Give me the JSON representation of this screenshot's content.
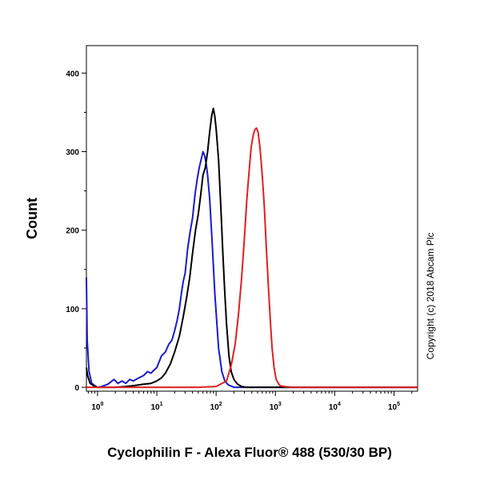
{
  "chart_data": {
    "type": "line",
    "xlabel": "Cyclophilin F - Alexa Fluor® 488 (530/30 BP)",
    "ylabel": "Count",
    "x_scale": "log",
    "xlim": [
      0.65,
      250000
    ],
    "ylim": [
      -5,
      435
    ],
    "x_ticks": [
      {
        "value": 1,
        "base": "10",
        "exp": "0"
      },
      {
        "value": 10,
        "base": "10",
        "exp": "1"
      },
      {
        "value": 100,
        "base": "10",
        "exp": "2"
      },
      {
        "value": 1000,
        "base": "10",
        "exp": "3"
      },
      {
        "value": 10000,
        "base": "10",
        "exp": "4"
      },
      {
        "value": 100000,
        "base": "10",
        "exp": "5"
      }
    ],
    "y_ticks": [
      {
        "value": 0,
        "label": "0"
      },
      {
        "value": 100,
        "label": "100"
      },
      {
        "value": 200,
        "label": "200"
      },
      {
        "value": 300,
        "label": "300"
      },
      {
        "value": 400,
        "label": "400"
      }
    ],
    "grid": false,
    "legend": "none",
    "series": [
      {
        "color": "#1a1acc",
        "x": [
          0.65,
          0.67,
          0.72,
          0.8,
          0.9,
          1.0,
          1.2,
          1.5,
          1.9,
          2.2,
          2.6,
          3.0,
          3.5,
          4.0,
          5.0,
          6.0,
          7.0,
          8.0,
          9.0,
          10.0,
          12.0,
          14.0,
          16.0,
          18.0,
          20.0,
          22.0,
          24.0,
          26.0,
          28.0,
          30.0,
          33.0,
          36.0,
          40.0,
          44.0,
          48.0,
          52.0,
          56.0,
          60.0,
          64.0,
          68.0,
          72.0,
          78.0,
          85.0,
          95.0,
          110.0,
          125.0,
          140.0,
          160.0,
          200.0,
          300.0,
          1000.0,
          250000.0
        ],
        "y": [
          140,
          60,
          20,
          5,
          2,
          0,
          1,
          4,
          10,
          5,
          8,
          5,
          10,
          8,
          12,
          15,
          20,
          18,
          22,
          25,
          40,
          45,
          55,
          60,
          72,
          85,
          100,
          120,
          135,
          145,
          175,
          195,
          215,
          245,
          265,
          280,
          290,
          300,
          295,
          285,
          270,
          240,
          190,
          120,
          50,
          20,
          8,
          3,
          0,
          0,
          0,
          0
        ]
      },
      {
        "color": "#000000",
        "x": [
          0.65,
          0.68,
          0.75,
          0.9,
          1.0,
          2.0,
          3.0,
          4.0,
          5.0,
          6.0,
          8.0,
          10.0,
          12.0,
          14.0,
          17.0,
          20.0,
          24.0,
          28.0,
          32.0,
          36.0,
          40.0,
          45.0,
          50.0,
          55.0,
          60.0,
          66.0,
          72.0,
          78.0,
          84.0,
          90.0,
          95.0,
          100.0,
          110.0,
          120.0,
          130.0,
          140.0,
          150.0,
          165.0,
          180.0,
          200.0,
          230.0,
          270.0,
          320.0,
          1000.0,
          250000.0
        ],
        "y": [
          25,
          15,
          5,
          1,
          0,
          0,
          1,
          2,
          3,
          4,
          5,
          8,
          12,
          18,
          30,
          45,
          65,
          90,
          115,
          140,
          170,
          200,
          220,
          245,
          270,
          280,
          300,
          325,
          345,
          355,
          345,
          330,
          290,
          230,
          170,
          120,
          80,
          40,
          20,
          10,
          4,
          1,
          0,
          0,
          0
        ]
      },
      {
        "color": "#e02020",
        "x": [
          0.65,
          50.0,
          100.0,
          150.0,
          180.0,
          210.0,
          240.0,
          270.0,
          300.0,
          330.0,
          360.0,
          390.0,
          420.0,
          450.0,
          480.0,
          510.0,
          550.0,
          600.0,
          650.0,
          700.0,
          760.0,
          820.0,
          880.0,
          950.0,
          1030.0,
          1120.0,
          1200.0,
          1400.0,
          2000.0,
          250000.0
        ],
        "y": [
          0,
          0,
          1,
          8,
          28,
          55,
          95,
          140,
          190,
          240,
          275,
          305,
          320,
          328,
          330,
          325,
          305,
          270,
          230,
          180,
          130,
          85,
          50,
          25,
          10,
          5,
          2,
          1,
          0,
          0
        ]
      }
    ]
  },
  "copyright": "Copyright (c) 2018 Abcam Plc"
}
